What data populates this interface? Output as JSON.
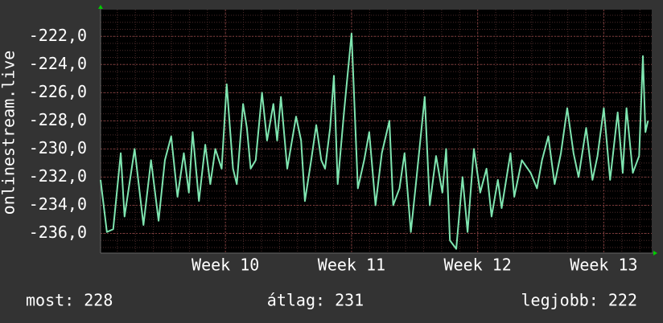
{
  "chart_data": {
    "type": "line",
    "y_label": "onlinestream.live",
    "x": [
      9.01,
      9.06,
      9.11,
      9.17,
      9.2,
      9.28,
      9.35,
      9.41,
      9.47,
      9.52,
      9.57,
      9.62,
      9.67,
      9.71,
      9.74,
      9.79,
      9.84,
      9.88,
      9.92,
      9.97,
      10.01,
      10.06,
      10.09,
      10.14,
      10.17,
      10.2,
      10.24,
      10.29,
      10.33,
      10.38,
      10.41,
      10.44,
      10.49,
      10.56,
      10.6,
      10.63,
      10.68,
      10.72,
      10.76,
      10.79,
      10.83,
      10.86,
      10.89,
      10.94,
      11.0,
      11.05,
      11.1,
      11.14,
      11.19,
      11.24,
      11.3,
      11.33,
      11.38,
      11.42,
      11.47,
      11.51,
      11.58,
      11.62,
      11.67,
      11.72,
      11.75,
      11.78,
      11.83,
      11.88,
      11.92,
      11.97,
      12.02,
      12.07,
      12.11,
      12.16,
      12.19,
      12.26,
      12.29,
      12.35,
      12.42,
      12.47,
      12.51,
      12.56,
      12.61,
      12.66,
      12.71,
      12.76,
      12.8,
      12.86,
      12.91,
      12.95,
      13.0,
      13.05,
      13.11,
      13.15,
      13.18,
      13.23,
      13.28,
      13.31,
      13.33,
      13.35
    ],
    "series": [
      {
        "color": "#7fe5b0",
        "values": [
          -232.2,
          -235.9,
          -235.7,
          -230.3,
          -234.8,
          -230.0,
          -235.4,
          -230.8,
          -235.1,
          -230.8,
          -229.1,
          -233.4,
          -230.3,
          -233.1,
          -228.8,
          -233.7,
          -229.7,
          -232.5,
          -230.0,
          -231.4,
          -225.4,
          -231.4,
          -232.5,
          -226.8,
          -228.5,
          -231.4,
          -230.8,
          -226.0,
          -229.4,
          -226.8,
          -229.4,
          -226.3,
          -231.4,
          -227.7,
          -229.4,
          -233.7,
          -230.8,
          -228.3,
          -230.8,
          -231.4,
          -228.5,
          -224.8,
          -232.5,
          -227.4,
          -221.8,
          -232.8,
          -230.8,
          -228.8,
          -234.0,
          -230.3,
          -228.0,
          -234.0,
          -232.8,
          -230.3,
          -235.9,
          -232.5,
          -226.3,
          -234.0,
          -230.5,
          -233.1,
          -230.0,
          -236.5,
          -237.1,
          -232.0,
          -235.9,
          -230.0,
          -233.1,
          -231.4,
          -234.8,
          -232.2,
          -234.2,
          -230.3,
          -233.4,
          -230.8,
          -231.7,
          -232.8,
          -230.8,
          -229.1,
          -232.5,
          -230.3,
          -227.1,
          -230.3,
          -232.0,
          -228.5,
          -232.2,
          -230.5,
          -227.1,
          -232.2,
          -227.4,
          -231.7,
          -227.1,
          -231.7,
          -230.5,
          -223.4,
          -228.8,
          -228.0
        ]
      }
    ],
    "xlim": [
      9.01,
      13.38
    ],
    "ylim": [
      -237.4,
      -220.1
    ],
    "xticks": [
      {
        "value": 10,
        "label": "Week 10"
      },
      {
        "value": 11,
        "label": "Week 11"
      },
      {
        "value": 12,
        "label": "Week 12"
      },
      {
        "value": 13,
        "label": "Week 13"
      }
    ],
    "yticks": [
      {
        "value": -236,
        "label": "-236,0"
      },
      {
        "value": -234,
        "label": "-234,0"
      },
      {
        "value": -232,
        "label": "-232,0"
      },
      {
        "value": -230,
        "label": "-230,0"
      },
      {
        "value": -228,
        "label": "-228,0"
      },
      {
        "value": -226,
        "label": "-226,0"
      },
      {
        "value": -224,
        "label": "-224,0"
      },
      {
        "value": -222,
        "label": "-222,0"
      }
    ],
    "grid": true,
    "summary": [
      "most: 228",
      "átlag: 231",
      "legjobb: 222"
    ]
  }
}
